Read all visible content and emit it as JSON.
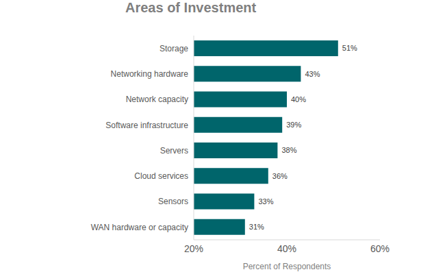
{
  "chart_data": {
    "type": "bar",
    "title": "Areas of Investment",
    "orientation": "horizontal",
    "categories": [
      "Storage",
      "Networking hardware",
      "Network capacity",
      "Software infrastructure",
      "Servers",
      "Cloud services",
      "Sensors",
      "WAN hardware or capacity"
    ],
    "values": [
      51,
      43,
      40,
      39,
      38,
      36,
      33,
      31
    ],
    "value_labels": [
      "51%",
      "43%",
      "40%",
      "39%",
      "38%",
      "36%",
      "33%",
      "31%"
    ],
    "color": "#00656b",
    "xlabel": "Percent of Respondents",
    "xlim": [
      20,
      60
    ],
    "xticks": [
      {
        "value": 20,
        "label": "20%"
      },
      {
        "value": 40,
        "label": "40%"
      },
      {
        "value": 60,
        "label": "60%"
      }
    ],
    "grid": false,
    "data_labels": true
  }
}
